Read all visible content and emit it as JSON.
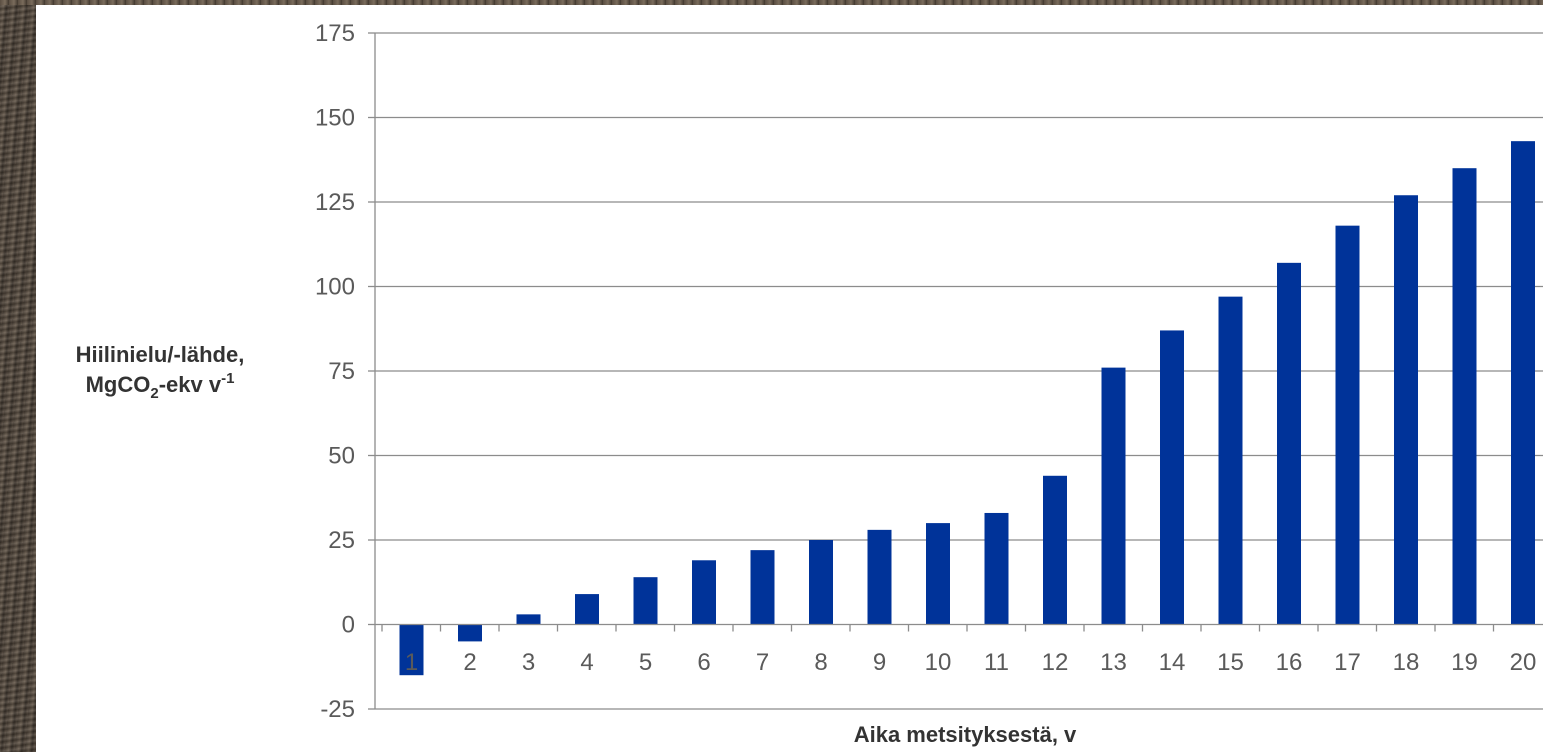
{
  "chart_data": {
    "type": "bar",
    "title": "",
    "xlabel": "Aika metsityksestä, v",
    "ylabel_line1": "Hiilinielu/-lähde,",
    "ylabel_line2_parts": [
      "MgCO",
      "2",
      "-ekv v",
      "-1"
    ],
    "categories": [
      "1",
      "2",
      "3",
      "4",
      "5",
      "6",
      "7",
      "8",
      "9",
      "10",
      "11",
      "12",
      "13",
      "14",
      "15",
      "16",
      "17",
      "18",
      "19",
      "20"
    ],
    "values": [
      -15,
      -5,
      3,
      9,
      14,
      19,
      22,
      25,
      28,
      30,
      33,
      44,
      76,
      87,
      97,
      107,
      118,
      127,
      135,
      143
    ],
    "ylim": [
      -25,
      175
    ],
    "yticks": [
      175,
      150,
      125,
      100,
      75,
      50,
      25,
      0,
      -25
    ],
    "grid": true,
    "legend": "none",
    "bar_color": "#003399",
    "grid_color": "#8c8c8c"
  }
}
